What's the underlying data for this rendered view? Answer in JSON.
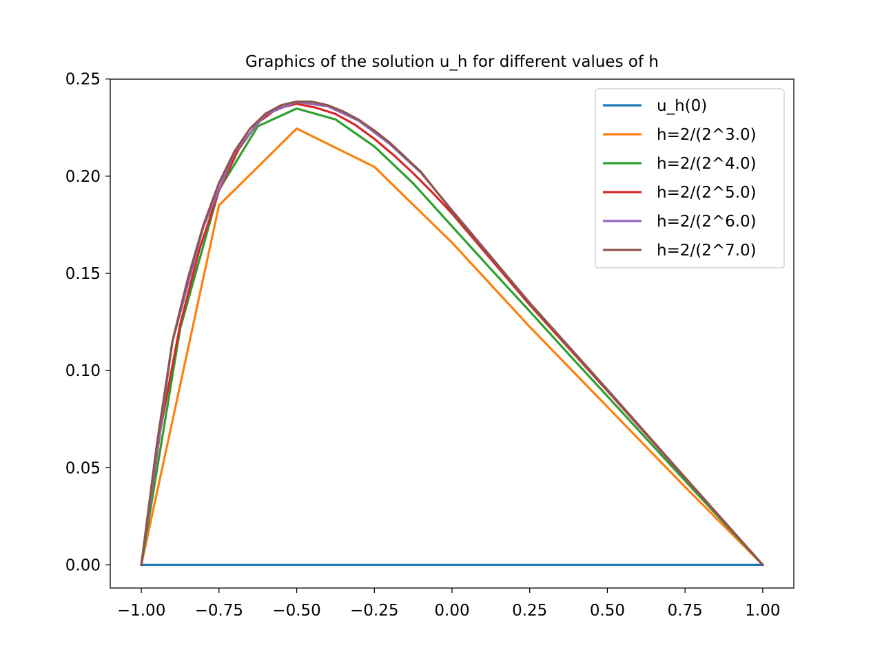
{
  "chart_data": {
    "type": "line",
    "title": "Graphics of the solution u_h for different values of h",
    "xlabel": "",
    "ylabel": "",
    "xlim": [
      -1.1,
      1.1
    ],
    "ylim": [
      -0.0119,
      0.2499
    ],
    "xticks": [
      -1.0,
      -0.75,
      -0.5,
      -0.25,
      0.0,
      0.25,
      0.5,
      0.75,
      1.0
    ],
    "xtick_labels": [
      "−1.00",
      "−0.75",
      "−0.50",
      "−0.25",
      "0.00",
      "0.25",
      "0.50",
      "0.75",
      "1.00"
    ],
    "yticks": [
      0.0,
      0.05,
      0.1,
      0.15,
      0.2,
      0.25
    ],
    "ytick_labels": [
      "0.00",
      "0.05",
      "0.10",
      "0.15",
      "0.20",
      "0.25"
    ],
    "grid": false,
    "legend": "top-right",
    "series": [
      {
        "name": "u_h(0)",
        "color": "#1f77b4",
        "x": [
          -1.0,
          1.0
        ],
        "y": [
          0.0,
          0.0
        ]
      },
      {
        "name": "h=2/(2^3.0)",
        "color": "#ff7f0e",
        "x": [
          -1.0,
          -0.75,
          -0.5,
          -0.25,
          0.0,
          0.25,
          0.5,
          0.75,
          1.0
        ],
        "y": [
          0.0,
          0.185,
          0.2245,
          0.2048,
          0.1658,
          0.1225,
          0.0813,
          0.0401,
          0.0
        ]
      },
      {
        "name": "h=2/(2^4.0)",
        "color": "#2ca02c",
        "x": [
          -1.0,
          -0.875,
          -0.75,
          -0.625,
          -0.5,
          -0.375,
          -0.25,
          -0.125,
          0.0,
          0.125,
          0.25,
          0.375,
          0.5,
          0.625,
          0.75,
          0.875,
          1.0
        ],
        "y": [
          0.0,
          0.1215,
          0.193,
          0.2257,
          0.2348,
          0.2292,
          0.2153,
          0.1963,
          0.1742,
          0.1522,
          0.1305,
          0.1085,
          0.0868,
          0.065,
          0.0433,
          0.0217,
          0.0
        ]
      },
      {
        "name": "h=2/(2^5.0)",
        "color": "#d62728",
        "x": [
          -1.0,
          -0.9375,
          -0.875,
          -0.8125,
          -0.75,
          -0.6875,
          -0.625,
          -0.5625,
          -0.5,
          -0.4375,
          -0.375,
          -0.3125,
          -0.25,
          -0.1875,
          -0.125,
          -0.0625,
          0.0,
          0.25,
          0.5,
          0.75,
          1.0
        ],
        "y": [
          0.0,
          0.0705,
          0.1235,
          0.1625,
          0.1925,
          0.2137,
          0.2275,
          0.2348,
          0.2372,
          0.2352,
          0.232,
          0.2265,
          0.2192,
          0.2108,
          0.2015,
          0.1915,
          0.1808,
          0.1338,
          0.0895,
          0.0446,
          0.0
        ]
      },
      {
        "name": "h=2/(2^6.0)",
        "color": "#9467bd",
        "x": [
          -1.0,
          -0.9,
          -0.8,
          -0.7,
          -0.6,
          -0.5,
          -0.4,
          -0.3,
          -0.2,
          -0.1,
          0.0,
          0.25,
          0.5,
          0.75,
          1.0
        ],
        "y": [
          0.0,
          0.1148,
          0.174,
          0.2123,
          0.2318,
          0.2382,
          0.236,
          0.2285,
          0.2165,
          0.2018,
          0.1825,
          0.1348,
          0.09,
          0.0448,
          0.0
        ]
      },
      {
        "name": "h=2/(2^7.0)",
        "color": "#8c564b",
        "x": [
          -1.0,
          -0.95,
          -0.9,
          -0.85,
          -0.8,
          -0.75,
          -0.7,
          -0.65,
          -0.6,
          -0.55,
          -0.5,
          -0.45,
          -0.4,
          -0.35,
          -0.3,
          -0.25,
          -0.2,
          -0.1,
          0.0,
          0.25,
          0.5,
          0.75,
          1.0
        ],
        "y": [
          0.0,
          0.062,
          0.115,
          0.1475,
          0.175,
          0.1965,
          0.2128,
          0.2245,
          0.2322,
          0.2365,
          0.2384,
          0.2383,
          0.2365,
          0.2333,
          0.229,
          0.2235,
          0.2172,
          0.2022,
          0.182,
          0.1348,
          0.0902,
          0.045,
          0.0
        ]
      }
    ]
  }
}
